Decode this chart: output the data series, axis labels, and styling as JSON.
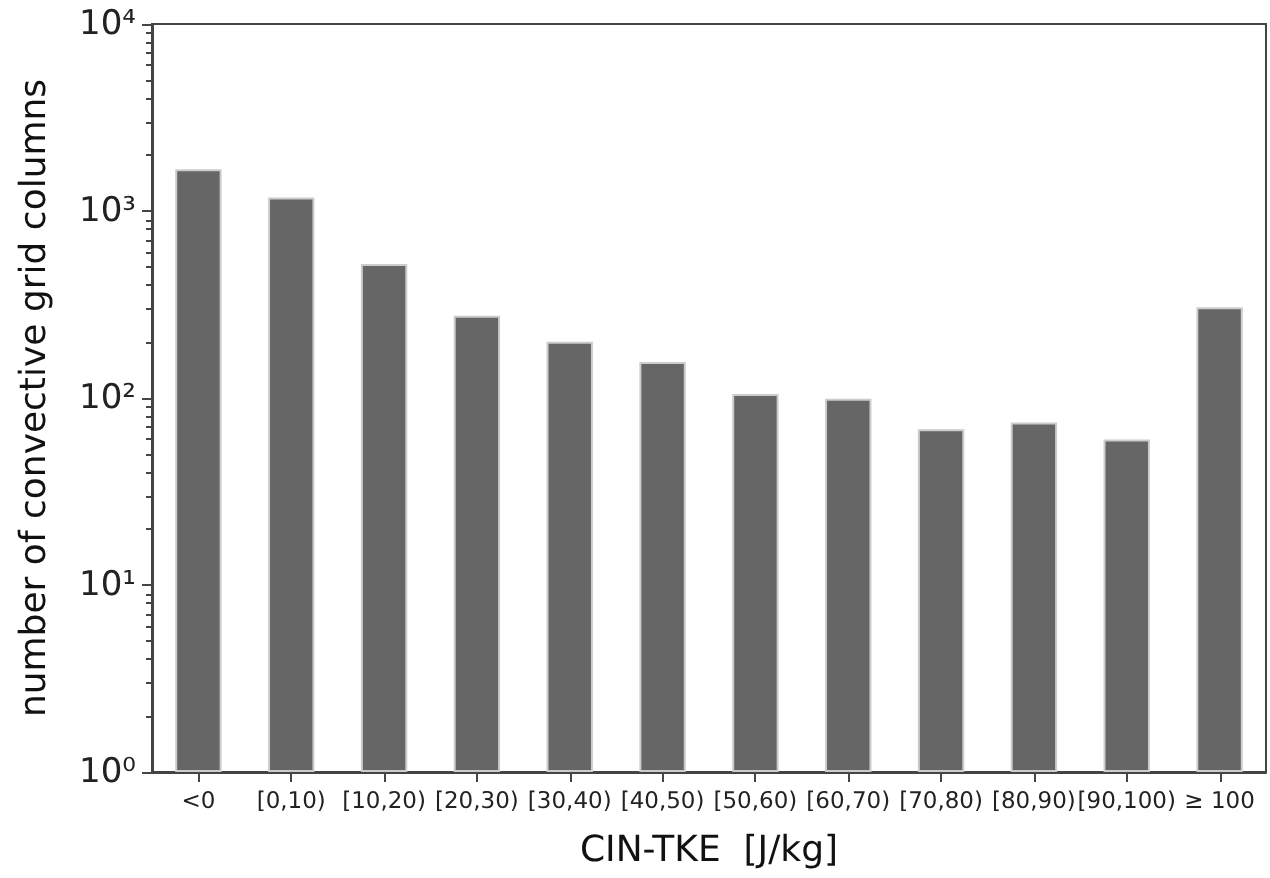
{
  "chart_data": {
    "type": "bar",
    "xlabel": "CIN-TKE  [J/kg]",
    "ylabel": "number of convective grid columns",
    "categories": [
      "<0",
      "[0,10)",
      "[10,20)",
      "[20,30)",
      "[30,40)",
      "[40,50)",
      "[50,60)",
      "[60,70)",
      "[70,80)",
      "[80,90)",
      "[90,100)",
      "≥ 100"
    ],
    "values": [
      1670,
      1180,
      520,
      275,
      200,
      156,
      105,
      99,
      68,
      74,
      60,
      306
    ],
    "color": "#666666",
    "log": "y",
    "ylim": [
      1,
      10000
    ],
    "yticks": [
      {
        "value": 1,
        "label": "10⁰"
      },
      {
        "value": 10,
        "label": "10¹"
      },
      {
        "value": 100,
        "label": "10²"
      },
      {
        "value": 1000,
        "label": "10³"
      },
      {
        "value": 10000,
        "label": "10⁴"
      }
    ],
    "grid": false
  }
}
